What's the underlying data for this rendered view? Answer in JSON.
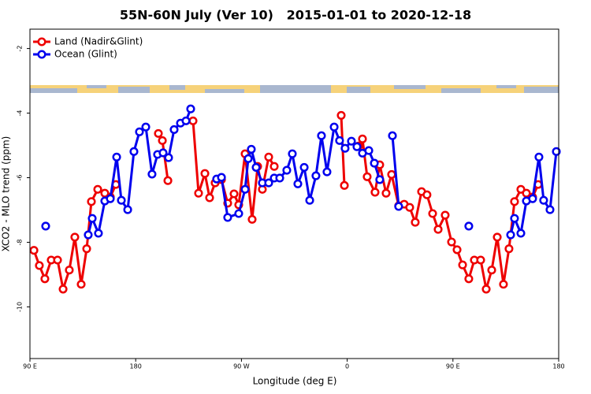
{
  "chart_data": {
    "type": "line",
    "title": "55N-60N July (Ver 10)   2015-01-01 to 2020-12-18",
    "xlabel": "Longitude (deg E)",
    "ylabel": "XCO2 - MLO trend (ppm)",
    "xlim": [
      90,
      540
    ],
    "ylim": [
      -11.6,
      -1.4
    ],
    "xticks": [
      {
        "value": 90,
        "label": "90 E"
      },
      {
        "value": 180,
        "label": "180"
      },
      {
        "value": 270,
        "label": "90 W"
      },
      {
        "value": 360,
        "label": "0"
      },
      {
        "value": 450,
        "label": "90 E"
      },
      {
        "value": 540,
        "label": "180"
      }
    ],
    "yticks": [
      -2,
      -4,
      -6,
      -8,
      -10
    ],
    "legend": "upper left",
    "grid": false,
    "series": [
      {
        "name": "Land (Nadir&Glint)",
        "color": "#ee0000",
        "x": [
          93.4,
          98.0,
          102.7,
          108.1,
          113.5,
          118.2,
          123.5,
          128.2,
          133.6,
          138.3,
          142.3,
          147.7,
          153.7,
          158.4,
          163.1,
          null,
          199.3,
          202.7,
          207.4,
          null,
          228.8,
          233.5,
          238.9,
          242.9,
          247.6,
          253.0,
          258.3,
          263.7,
          267.7,
          273.1,
          279.1,
          283.8,
          287.8,
          293.2,
          297.9,
          null,
          354.9,
          357.6,
          null,
          369.6,
          373.0,
          377.0,
          383.7,
          387.7,
          393.1,
          397.8,
          403.8,
          408.5,
          413.2,
          417.9,
          423.3,
          427.9,
          432.7,
          437.4,
          443.4,
          448.8,
          453.5,
          458.2,
          463.5,
          468.2,
          473.6,
          478.3,
          483.0,
          487.7,
          493.0,
          497.7,
          502.4,
          507.8,
          512.5,
          517.8,
          522.5
        ],
        "values": [
          -8.25,
          -8.72,
          -9.13,
          -8.55,
          -8.55,
          -9.45,
          -8.86,
          -7.84,
          -9.3,
          -8.2,
          -6.74,
          -6.36,
          -6.48,
          -6.6,
          -6.21,
          null,
          -4.63,
          -4.85,
          -6.09,
          null,
          -4.24,
          -6.48,
          -5.87,
          -6.62,
          -6.16,
          -6.06,
          -6.79,
          -6.5,
          -6.84,
          -5.26,
          -7.29,
          -5.65,
          -6.36,
          -5.36,
          -5.65,
          null,
          -4.07,
          -6.24,
          null,
          -5.02,
          -4.8,
          -5.97,
          -6.45,
          -5.6,
          -6.48,
          -5.9,
          -6.87,
          -6.82,
          -6.92,
          -7.38,
          -6.43,
          -6.53,
          -7.11,
          -7.6,
          -7.16,
          -7.99,
          -8.23,
          -8.7,
          -9.13,
          -8.55,
          -8.55,
          -9.45,
          -8.86,
          -7.84,
          -9.3,
          -8.2,
          -6.74,
          -6.36,
          -6.48,
          -6.6,
          -6.21
        ]
      },
      {
        "name": "Ocean (Glint)",
        "color": "#0000ee",
        "x": [
          103.4,
          null,
          139.6,
          143.0,
          148.3,
          153.7,
          158.4,
          163.8,
          167.8,
          173.2,
          178.5,
          183.2,
          188.6,
          193.9,
          198.6,
          203.3,
          208.0,
          212.7,
          218.1,
          222.8,
          226.8,
          null,
          248.9,
          253.0,
          258.3,
          267.7,
          273.1,
          275.8,
          278.4,
          282.5,
          287.8,
          293.2,
          297.9,
          302.6,
          308.6,
          313.3,
          318.0,
          323.4,
          328.1,
          333.4,
          338.1,
          342.8,
          348.9,
          353.5,
          358.2,
          363.6,
          368.3,
          373.0,
          378.4,
          383.1,
          387.7,
          null,
          398.5,
          403.8,
          null,
          463.5,
          null,
          499.1,
          502.4,
          507.8,
          512.5,
          517.8,
          523.2,
          527.2,
          532.6,
          538.0
        ],
        "values": [
          -7.5,
          null,
          -7.77,
          -7.26,
          -7.72,
          -6.72,
          -6.65,
          -5.36,
          -6.7,
          -6.99,
          -5.19,
          -4.58,
          -4.43,
          -5.89,
          -5.28,
          -5.23,
          -5.38,
          -4.51,
          -4.31,
          -4.24,
          -3.87,
          null,
          -6.04,
          -5.99,
          -7.23,
          -7.11,
          -6.36,
          -5.41,
          -5.12,
          -5.68,
          -6.16,
          -6.16,
          -6.01,
          -6.01,
          -5.77,
          -5.26,
          -6.19,
          -5.68,
          -6.7,
          -5.94,
          -4.7,
          -5.82,
          -4.43,
          -4.85,
          -5.09,
          -4.87,
          -5.04,
          -5.24,
          -5.16,
          -5.55,
          -6.06,
          null,
          -4.7,
          -6.89,
          null,
          -7.5,
          null,
          -7.77,
          -7.26,
          -7.72,
          -6.72,
          -6.65,
          -5.36,
          -6.7,
          -6.99,
          -5.19
        ]
      }
    ]
  }
}
